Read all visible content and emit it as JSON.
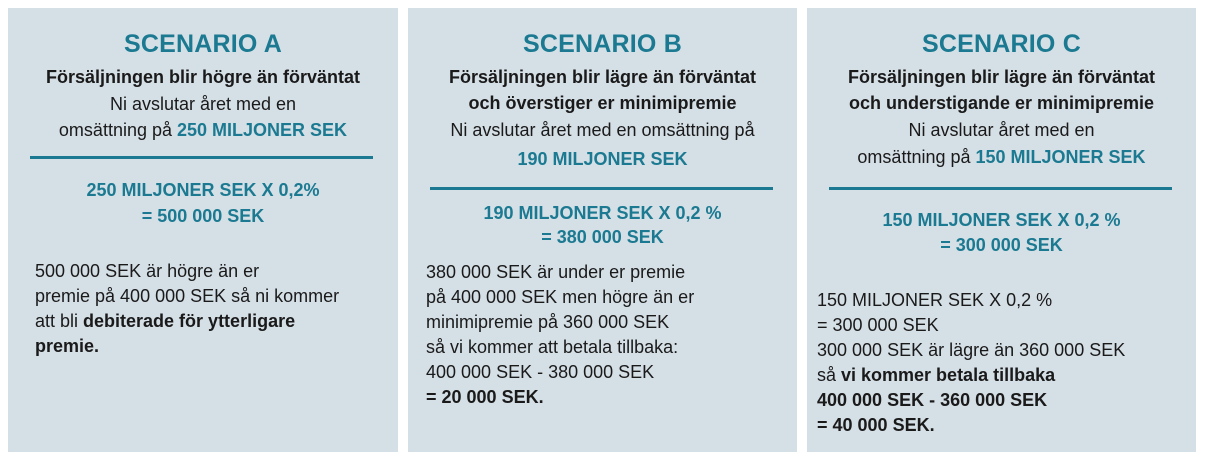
{
  "scenario_a": {
    "title": "SCENARIO A",
    "subtitle": "Försäljningen blir högre än förväntat",
    "desc_line1": "Ni avslutar året med en",
    "desc_line2_prefix": "omsättning på ",
    "desc_amount": "250 MILJONER SEK",
    "calc_line1": "250 MILJONER SEK X 0,2%",
    "calc_line2": "= 500 000 SEK",
    "body_line1": "500 000 SEK är högre än er",
    "body_line2": "premie på 400 000 SEK så ni kommer",
    "body_line3_prefix": "att bli ",
    "body_line3_bold": "debiterade för ytterligare",
    "body_line4_bold": "premie."
  },
  "scenario_b": {
    "title": "SCENARIO B",
    "subtitle_line1": "Försäljningen blir lägre än förväntat",
    "subtitle_line2": "och överstiger er minimipremie",
    "desc_line1": "Ni avslutar året med en omsättning på",
    "desc_amount": "190 MILJONER SEK",
    "calc_line1": "190 MILJONER SEK X 0,2 %",
    "calc_line2": "= 380 000 SEK",
    "body_line1": "380 000 SEK är under er premie",
    "body_line2": "på 400 000 SEK men högre än er",
    "body_line3": "minimipremie på 360 000 SEK",
    "body_line4": "så vi kommer att betala tillbaka:",
    "body_line5": "400 000 SEK - 380 000 SEK",
    "body_line6_bold": "= 20 000 SEK."
  },
  "scenario_c": {
    "title": "SCENARIO C",
    "subtitle_line1": "Försäljningen blir lägre än förväntat",
    "subtitle_line2": "och understigande er minimipremie",
    "desc_line1": "Ni avslutar året med en",
    "desc_line2_prefix": "omsättning på ",
    "desc_amount": "150 MILJONER SEK",
    "calc_line1": "150 MILJONER SEK X 0,2 %",
    "calc_line2": "= 300 000 SEK",
    "body_line1": "150 MILJONER SEK X 0,2 %",
    "body_line2": "= 300 000 SEK",
    "body_line3": "300 000 SEK är lägre än 360 000 SEK",
    "body_line4_prefix": "så ",
    "body_line4_bold": "vi kommer betala tillbaka",
    "body_line5_bold": "400 000 SEK - 360 000 SEK",
    "body_line6_bold": "= 40 000 SEK."
  }
}
